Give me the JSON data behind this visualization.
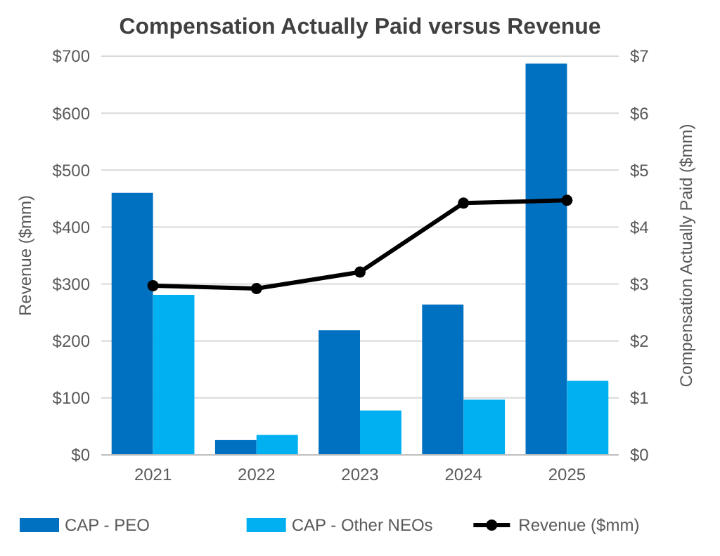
{
  "chart_data": {
    "type": "bar",
    "title": "Compensation Actually Paid versus Revenue",
    "categories": [
      "2021",
      "2022",
      "2023",
      "2024",
      "2025"
    ],
    "series": [
      {
        "name": "CAP - PEO",
        "color": "#0070c0",
        "axis": "y2",
        "values": [
          4.6,
          0.26,
          2.19,
          2.64,
          6.87
        ]
      },
      {
        "name": "CAP - Other NEOs",
        "color": "#00b0f0",
        "axis": "y2",
        "values": [
          2.81,
          0.35,
          0.78,
          0.97,
          1.3
        ]
      },
      {
        "name": "Revenue ($mm)",
        "type": "line",
        "color": "#000000",
        "values": [
          297,
          292,
          321,
          442,
          447
        ]
      }
    ],
    "ylabel": "Revenue ($mm)",
    "y2label": "Compensation Actually Paid ($mm)",
    "ylim": [
      0,
      700
    ],
    "yticks": [
      {
        "value": 0,
        "label": "$0"
      },
      {
        "value": 100,
        "label": "$100"
      },
      {
        "value": 200,
        "label": "$200"
      },
      {
        "value": 300,
        "label": "$300"
      },
      {
        "value": 400,
        "label": "$400"
      },
      {
        "value": 500,
        "label": "$500"
      },
      {
        "value": 600,
        "label": "$600"
      },
      {
        "value": 700,
        "label": "$700"
      }
    ],
    "y2lim": [
      0,
      7
    ],
    "y2ticks": [
      {
        "value": 0,
        "label": "$0"
      },
      {
        "value": 1,
        "label": "$1"
      },
      {
        "value": 2,
        "label": "$2"
      },
      {
        "value": 3,
        "label": "$3"
      },
      {
        "value": 4,
        "label": "$4"
      },
      {
        "value": 5,
        "label": "$5"
      },
      {
        "value": 6,
        "label": "$6"
      },
      {
        "value": 7,
        "label": "$7"
      }
    ],
    "grid": "y",
    "legend": "bottom",
    "marker": "circle",
    "line_style": "solid"
  }
}
